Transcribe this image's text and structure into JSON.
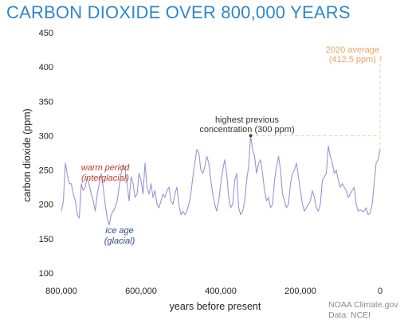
{
  "chart_data": {
    "type": "line",
    "title": "CARBON DIOXIDE OVER 800,000 YEARS",
    "xlabel": "years before present",
    "ylabel": "carbon dioxide (ppm)",
    "xlim": [
      800000,
      0
    ],
    "ylim": [
      100,
      450
    ],
    "xticks": [
      800000,
      600000,
      400000,
      200000,
      0
    ],
    "xtick_labels": [
      "800,000",
      "600,000",
      "400,000",
      "200,000",
      "0"
    ],
    "yticks": [
      100,
      150,
      200,
      250,
      300,
      350,
      400,
      450
    ],
    "grid": false,
    "series": [
      {
        "color": "#9a94d3",
        "x": [
          800000,
          795000,
          790000,
          785000,
          780000,
          775000,
          770000,
          765000,
          760000,
          755000,
          750000,
          745000,
          740000,
          735000,
          730000,
          725000,
          720000,
          715000,
          710000,
          705000,
          700000,
          695000,
          690000,
          685000,
          680000,
          675000,
          670000,
          665000,
          660000,
          655000,
          650000,
          645000,
          640000,
          635000,
          630000,
          625000,
          620000,
          615000,
          610000,
          605000,
          600000,
          595000,
          590000,
          585000,
          580000,
          575000,
          570000,
          565000,
          560000,
          555000,
          550000,
          545000,
          540000,
          535000,
          530000,
          525000,
          520000,
          515000,
          510000,
          505000,
          500000,
          495000,
          490000,
          485000,
          480000,
          475000,
          470000,
          465000,
          460000,
          455000,
          450000,
          445000,
          440000,
          435000,
          430000,
          425000,
          420000,
          415000,
          410000,
          405000,
          400000,
          395000,
          390000,
          385000,
          380000,
          375000,
          370000,
          365000,
          360000,
          355000,
          350000,
          345000,
          340000,
          335000,
          330000,
          325000,
          320000,
          315000,
          310000,
          305000,
          300000,
          295000,
          290000,
          285000,
          280000,
          275000,
          270000,
          265000,
          260000,
          255000,
          250000,
          245000,
          240000,
          235000,
          230000,
          225000,
          220000,
          215000,
          210000,
          205000,
          200000,
          195000,
          190000,
          185000,
          180000,
          175000,
          170000,
          165000,
          160000,
          155000,
          150000,
          145000,
          140000,
          135000,
          130000,
          125000,
          120000,
          115000,
          110000,
          105000,
          100000,
          95000,
          90000,
          85000,
          80000,
          75000,
          70000,
          65000,
          60000,
          55000,
          50000,
          45000,
          40000,
          35000,
          30000,
          25000,
          20000,
          15000,
          10000,
          5000,
          0
        ],
        "y": [
          190,
          205,
          260,
          243,
          230,
          230,
          215,
          205,
          185,
          180,
          230,
          220,
          225,
          240,
          228,
          215,
          205,
          190,
          215,
          230,
          245,
          225,
          200,
          180,
          170,
          185,
          190,
          195,
          205,
          225,
          245,
          258,
          250,
          230,
          205,
          240,
          230,
          210,
          215,
          245,
          235,
          215,
          260,
          225,
          215,
          230,
          210,
          220,
          200,
          195,
          205,
          215,
          210,
          220,
          225,
          205,
          200,
          215,
          225,
          200,
          185,
          190,
          185,
          190,
          200,
          215,
          240,
          260,
          280,
          275,
          250,
          245,
          255,
          270,
          260,
          235,
          215,
          200,
          190,
          205,
          230,
          250,
          265,
          245,
          210,
          195,
          200,
          235,
          245,
          195,
          185,
          190,
          205,
          235,
          255,
          300,
          280,
          270,
          245,
          260,
          265,
          245,
          220,
          205,
          210,
          195,
          200,
          235,
          255,
          270,
          250,
          215,
          205,
          195,
          200,
          230,
          245,
          250,
          260,
          240,
          220,
          200,
          190,
          195,
          200,
          205,
          220,
          210,
          195,
          190,
          200,
          235,
          240,
          245,
          285,
          270,
          260,
          245,
          250,
          235,
          225,
          230,
          225,
          220,
          210,
          215,
          220,
          225,
          200,
          190,
          192,
          190,
          190,
          195,
          185,
          187,
          200,
          230,
          260,
          265,
          280
        ]
      }
    ],
    "annotations": {
      "warm_period_line1": "warm period",
      "warm_period_line2": "(interglacial)",
      "ice_age_line1": "ice age",
      "ice_age_line2": "(glacial)",
      "highest_line1": "highest previous",
      "highest_line2": "concentration (300 ppm)",
      "avg2020_line1": "2020 average",
      "avg2020_line2": "(412.5 ppm)",
      "reference_line_value": 300,
      "avg2020_value": 412.5,
      "highest_point": [
        325000,
        300
      ]
    },
    "credits": [
      "NOAA Climate.gov",
      "Data: NCEI"
    ],
    "colors": {
      "title": "#2f87c8",
      "line": "#9a94d3",
      "warm_text": "#c0392b",
      "ice_text": "#2c4a7c",
      "highest_text": "#333333",
      "avg2020_text": "#e8a463",
      "reference_line": "#e9d2ad",
      "credit_text": "#8a8a8a"
    }
  }
}
